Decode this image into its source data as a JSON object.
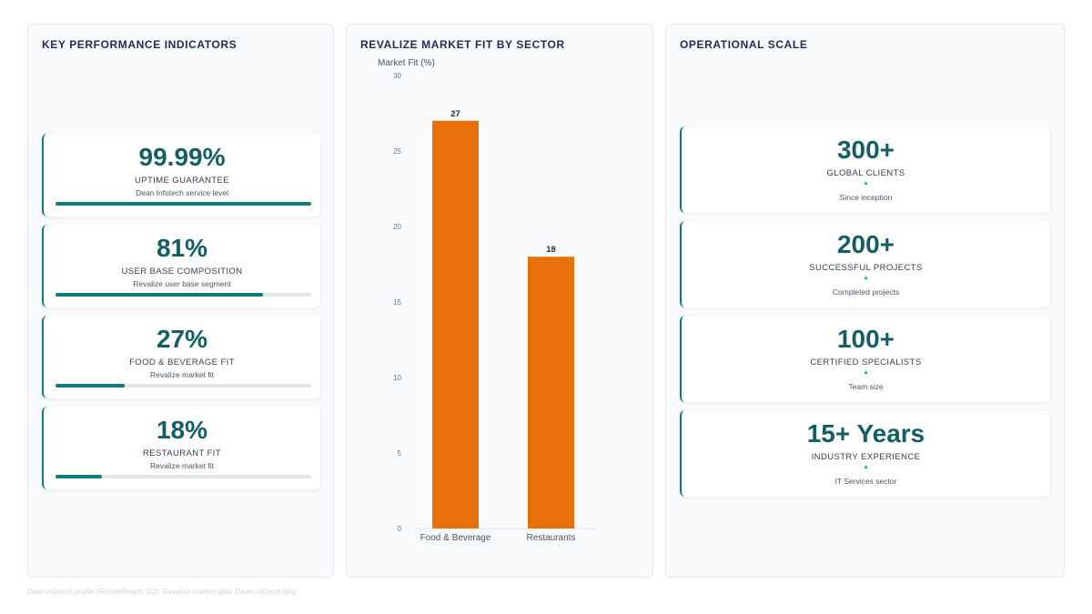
{
  "kpi_panel": {
    "title": "KEY PERFORMANCE INDICATORS",
    "cards": [
      {
        "value": "99.99%",
        "label": "UPTIME GUARANTEE",
        "sub": "Dean Infotech service level",
        "progress": 0.9999
      },
      {
        "value": "81%",
        "label": "USER BASE COMPOSITION",
        "sub": "Revalize user base segment",
        "progress": 0.81
      },
      {
        "value": "27%",
        "label": "FOOD & BEVERAGE FIT",
        "sub": "Revalize market fit",
        "progress": 0.27
      },
      {
        "value": "18%",
        "label": "RESTAURANT FIT",
        "sub": "Revalize market fit",
        "progress": 0.18
      }
    ]
  },
  "chart_panel": {
    "title": "REVALIZE MARKET FIT BY SECTOR"
  },
  "chart_data": {
    "type": "bar",
    "title": "REVALIZE MARKET FIT BY SECTOR",
    "ylabel": "Market Fit (%)",
    "xlabel": "",
    "categories": [
      "Food & Beverage",
      "Restaurants"
    ],
    "values": [
      27,
      18
    ],
    "ylim": [
      0,
      30
    ],
    "yticks": [
      0,
      5,
      10,
      15,
      20,
      25,
      30
    ],
    "data_labels": [
      "27",
      "18"
    ],
    "grid": false,
    "bar_color": "#e8700a"
  },
  "ops_panel": {
    "title": "OPERATIONAL SCALE",
    "cards": [
      {
        "value": "300+",
        "label": "GLOBAL CLIENTS",
        "arrow": "▲",
        "sub": "Since inception"
      },
      {
        "value": "200+",
        "label": "SUCCESSFUL PROJECTS",
        "arrow": "▲",
        "sub": "Completed projects"
      },
      {
        "value": "100+",
        "label": "CERTIFIED SPECIALISTS",
        "arrow": "▲",
        "sub": "Team size"
      },
      {
        "value": "15+ Years",
        "label": "INDUSTRY EXPERIENCE",
        "arrow": "▲",
        "sub": "IT Services sector"
      }
    ]
  },
  "footer": {
    "source": "Dean Infotech profile (RocketReach, G2), Revalize market data, Dean Infotech blog"
  },
  "colors": {
    "accent_teal": "#0f7b7d",
    "bar_orange": "#e8700a",
    "title_navy": "#1f2a5c"
  }
}
